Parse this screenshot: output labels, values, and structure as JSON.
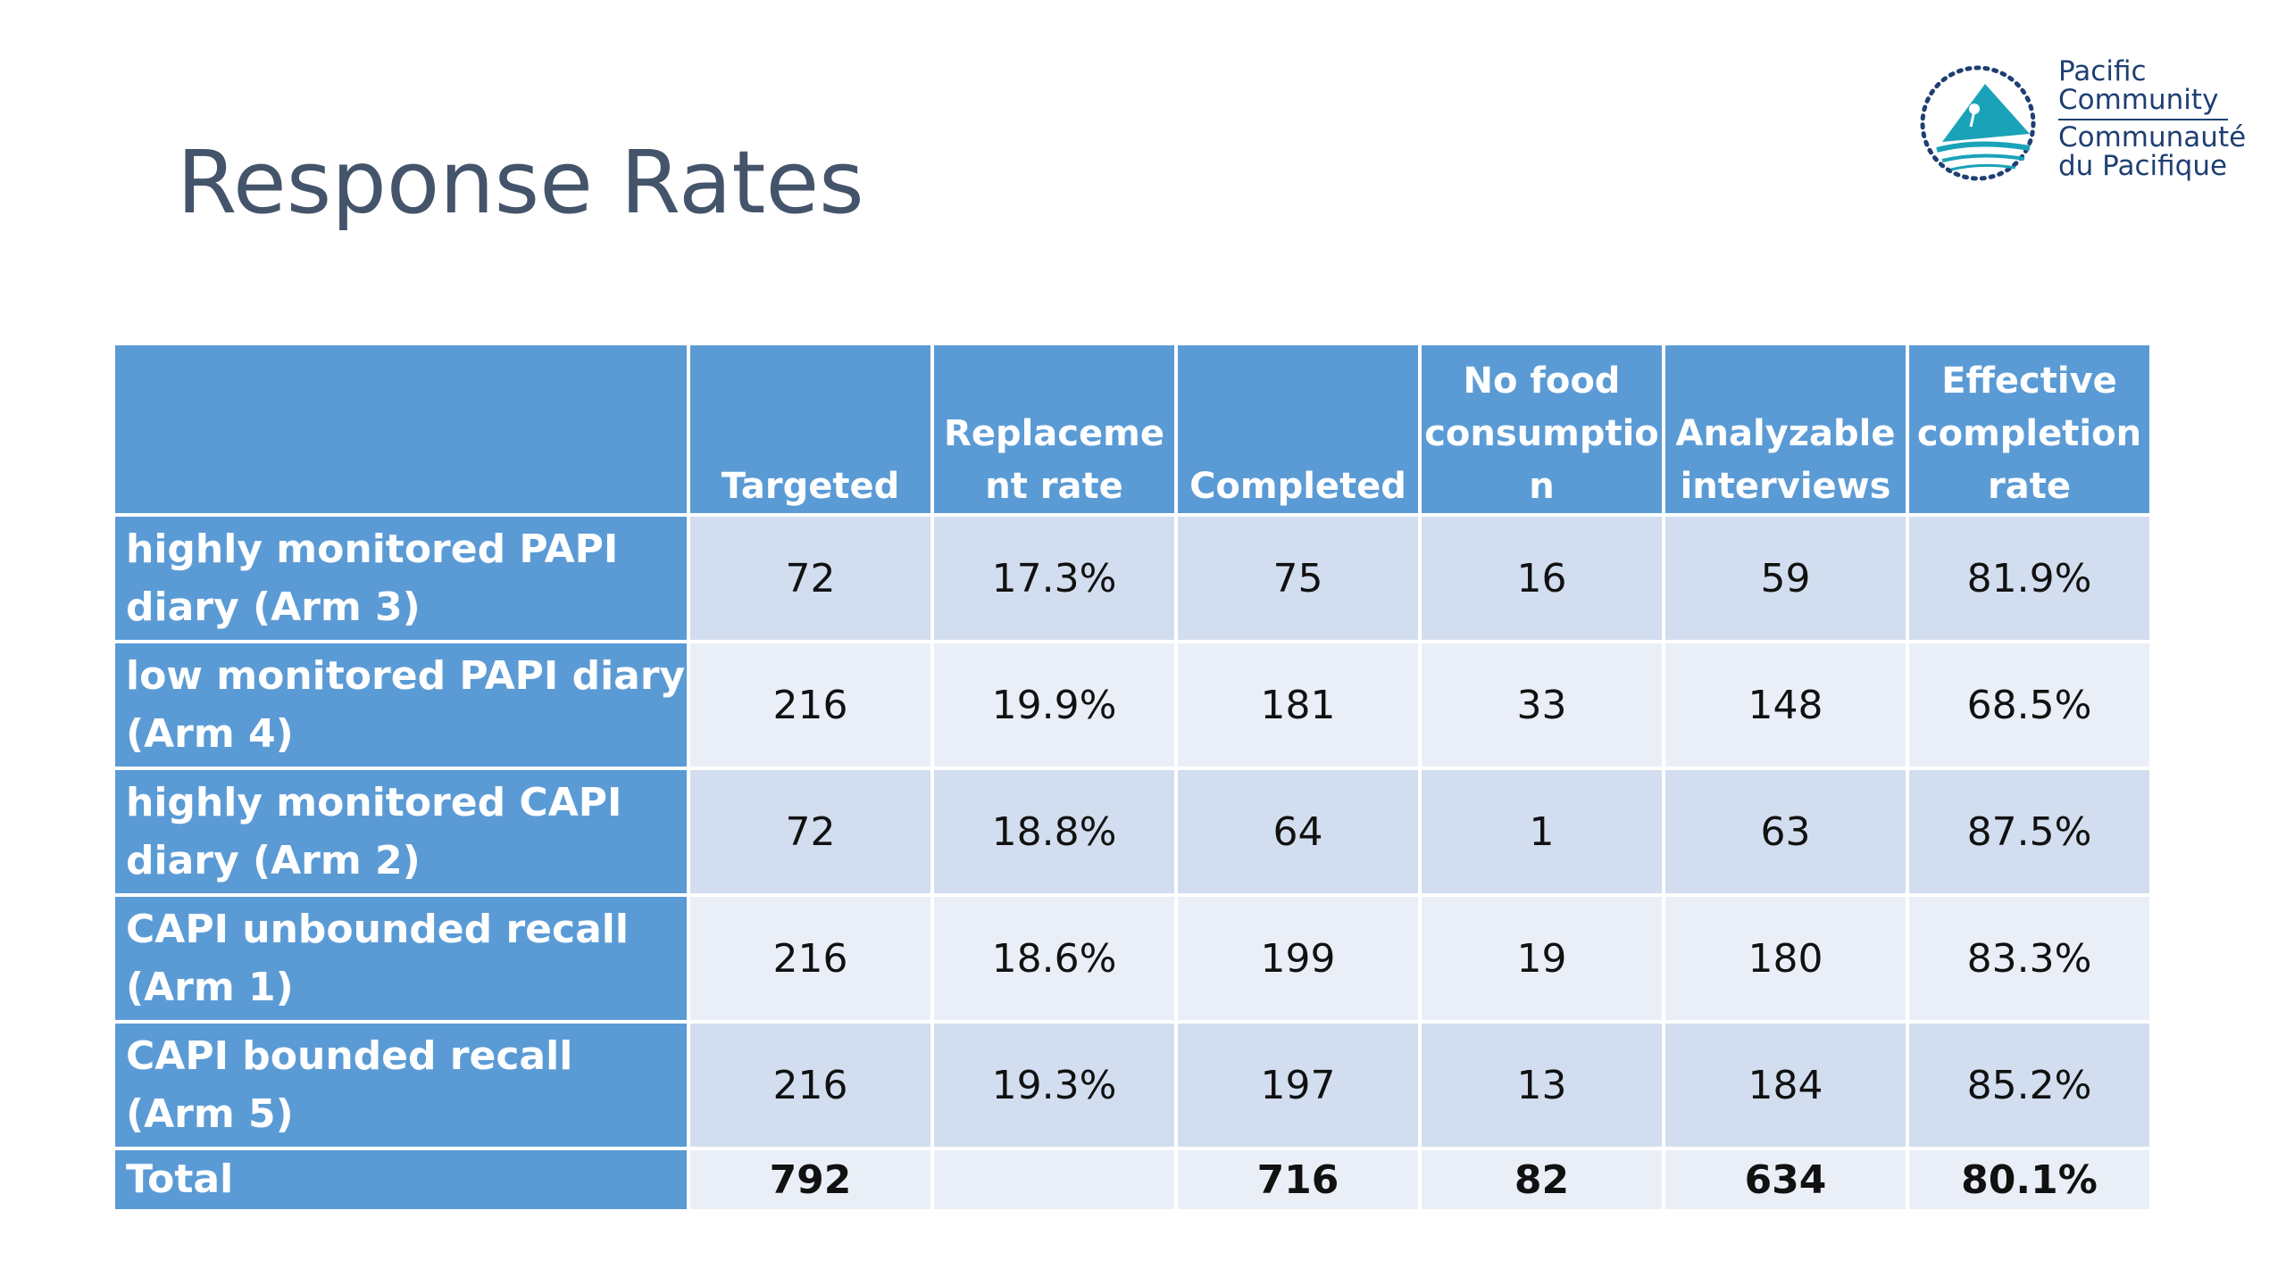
{
  "slide": {
    "title": "Response Rates"
  },
  "logo": {
    "line1": "Pacific",
    "line2": "Community",
    "line3": "Communauté",
    "line4": "du Pacifique",
    "colors": {
      "teal": "#1aa3b8",
      "navy": "#1f3f73"
    }
  },
  "table": {
    "headers": [
      "",
      "Targeted",
      "Replaceme nt rate",
      "Completed",
      "No food consumptio n",
      "Analyzable interviews",
      "Effective completion rate"
    ],
    "rows": [
      {
        "label": "highly monitored PAPI diary (Arm 3)",
        "cells": [
          "72",
          "17.3%",
          "75",
          "16",
          "59",
          "81.9%"
        ]
      },
      {
        "label": "low monitored PAPI diary (Arm 4)",
        "cells": [
          "216",
          "19.9%",
          "181",
          "33",
          "148",
          "68.5%"
        ]
      },
      {
        "label": "highly monitored CAPI diary (Arm 2)",
        "cells": [
          "72",
          "18.8%",
          "64",
          "1",
          "63",
          "87.5%"
        ]
      },
      {
        "label": "CAPI unbounded recall (Arm 1)",
        "cells": [
          "216",
          "18.6%",
          "199",
          "19",
          "180",
          "83.3%"
        ]
      },
      {
        "label": "CAPI bounded recall (Arm 5)",
        "cells": [
          "216",
          "19.3%",
          "197",
          "13",
          "184",
          "85.2%"
        ]
      }
    ],
    "total": {
      "label": "Total",
      "cells": [
        "792",
        "",
        "716",
        "82",
        "634",
        "80.1%"
      ]
    },
    "colors": {
      "header": "#5b9bd5",
      "row_dark": "#d2deef",
      "row_light": "#eaeff7"
    }
  }
}
